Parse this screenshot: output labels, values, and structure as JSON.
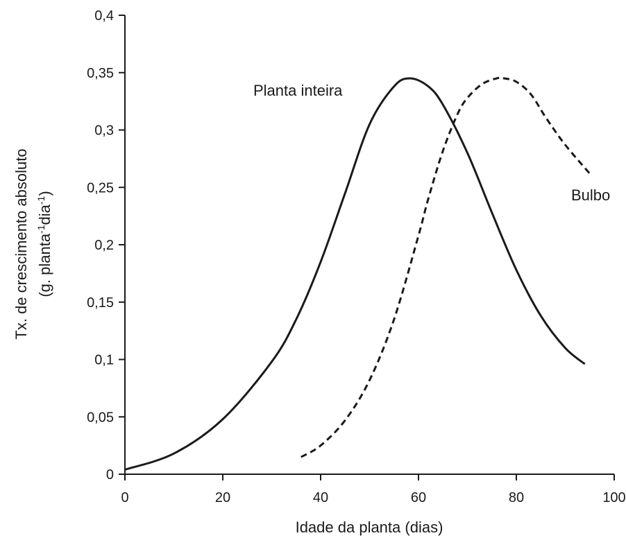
{
  "chart_data": {
    "type": "line",
    "title": "",
    "xlabel": "Idade da planta (dias)",
    "ylabel": "Tx. de crescimento absoluto",
    "ylabel_unit": {
      "prefix": "(g. planta",
      "exp1": "-1",
      "mid": "dia",
      "exp2": "-1",
      "suffix": ")"
    },
    "xlim": [
      0,
      100
    ],
    "ylim": [
      0,
      0.4
    ],
    "x_ticks": [
      0,
      20,
      40,
      60,
      80,
      100
    ],
    "x_tick_labels": [
      "0",
      "20",
      "40",
      "60",
      "80",
      "100"
    ],
    "y_ticks": [
      0,
      0.05,
      0.1,
      0.15,
      0.2,
      0.25,
      0.3,
      0.35,
      0.4
    ],
    "y_tick_labels": [
      "0",
      "0,05",
      "0,1",
      "0,15",
      "0,2",
      "0,25",
      "0,3",
      "0,35",
      "0,4"
    ],
    "grid": false,
    "legend": "none",
    "series": [
      {
        "name": "Planta inteira",
        "style": "solid",
        "color": "#1a1a1a",
        "x": [
          0,
          10,
          20,
          30,
          35,
          40,
          45,
          50,
          55,
          58.3,
          62,
          65,
          70,
          75,
          80,
          85,
          90,
          94
        ],
        "y": [
          0.004,
          0.018,
          0.048,
          0.098,
          0.135,
          0.185,
          0.245,
          0.305,
          0.338,
          0.345,
          0.338,
          0.322,
          0.28,
          0.228,
          0.178,
          0.138,
          0.11,
          0.096
        ]
      },
      {
        "name": "Bulbo",
        "style": "dashed",
        "color": "#1a1a1a",
        "x": [
          36,
          40,
          45,
          50,
          55,
          60,
          62,
          65,
          68,
          70,
          73,
          76,
          77.5,
          80,
          83,
          86,
          90,
          95
        ],
        "y": [
          0.015,
          0.025,
          0.047,
          0.082,
          0.135,
          0.208,
          0.24,
          0.282,
          0.314,
          0.328,
          0.34,
          0.345,
          0.345,
          0.342,
          0.331,
          0.311,
          0.287,
          0.262
        ]
      }
    ]
  }
}
